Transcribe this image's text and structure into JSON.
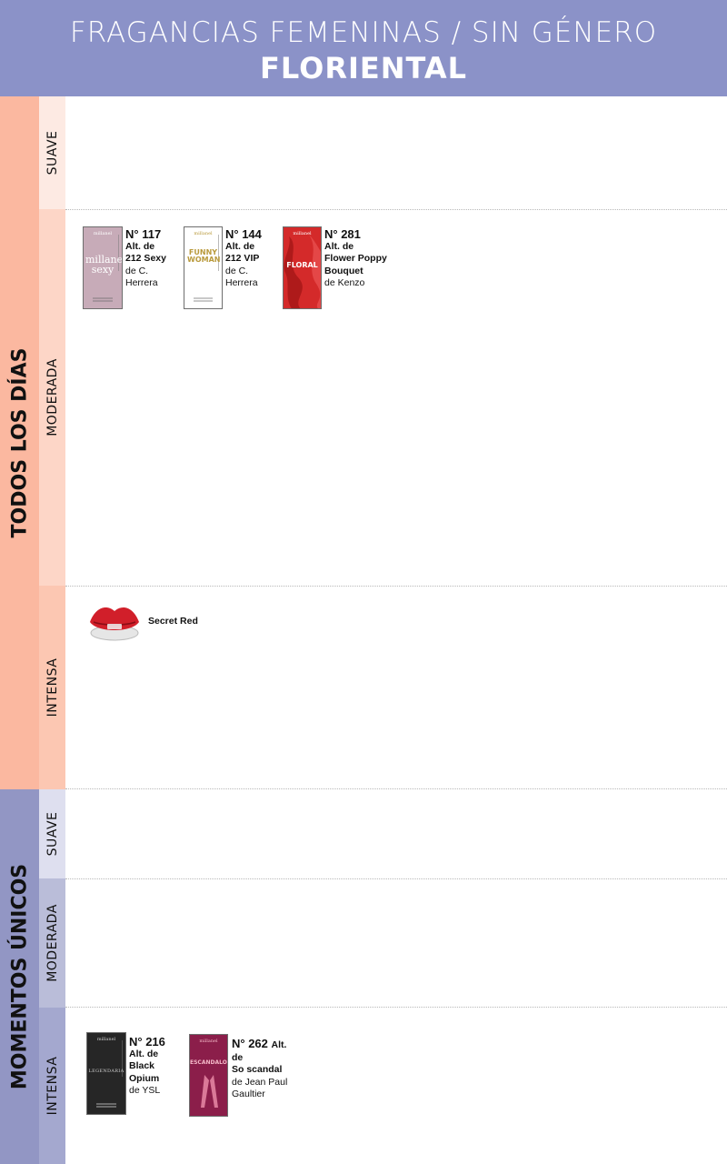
{
  "header": {
    "subtitle": "FRAGANCIAS FEMENINAS / SIN GÉNERO",
    "title": "FLORIENTAL"
  },
  "colors": {
    "header_bg": "#8b92c8",
    "group_todos": "#fbb8a0",
    "group_momentos": "#9296c4",
    "todos_suave": "#fdeae3",
    "todos_moderada": "#fdd6c7",
    "todos_intensa": "#fcc7b2",
    "momentos_suave": "#dedfef",
    "momentos_moderada": "#babdd9",
    "momentos_intensa": "#a4a8cf"
  },
  "groups": {
    "todos": {
      "label": "TODOS LOS DÍAS"
    },
    "momentos": {
      "label": "MOMENTOS ÚNICOS"
    }
  },
  "rows": {
    "todos_suave": {
      "label": "SUAVE"
    },
    "todos_moderada": {
      "label": "MODERADA"
    },
    "todos_intensa": {
      "label": "INTENSA"
    },
    "momentos_suave": {
      "label": "SUAVE"
    },
    "momentos_moderada": {
      "label": "MODERADA"
    },
    "momentos_intensa": {
      "label": "INTENSA"
    }
  },
  "products": [
    {
      "number": "N° 117",
      "alt_lines": [
        "Alt. de",
        "212 Sexy"
      ],
      "orig_lines": [
        "de C.",
        "Herrera"
      ],
      "bottle": {
        "brand": "millanel",
        "name": "millanel sexy",
        "bg": "#c7abb8",
        "color": "#ffffff"
      }
    },
    {
      "number": "N° 144",
      "alt_lines": [
        "Alt. de",
        "212 VIP"
      ],
      "orig_lines": [
        "de C.",
        "Herrera"
      ],
      "bottle": {
        "brand": "millanel",
        "name": "FUNNY WOMAN",
        "bg": "#ffffff",
        "color": "#b99a3c"
      }
    },
    {
      "number": "N° 281",
      "alt_lines": [
        "Alt. de",
        "Flower Poppy",
        "Bouquet"
      ],
      "orig_lines": [
        "de Kenzo"
      ],
      "bottle": {
        "brand": "millanel",
        "name": "FLORAL",
        "bg": "#d42a2a",
        "color": "#ffffff"
      }
    },
    {
      "name": "Secret Red",
      "icon": "red-lips-bottle-icon"
    },
    {
      "number": "N° 216",
      "alt_lines": [
        "Alt. de",
        "Black",
        "Opium"
      ],
      "orig_lines": [
        "de YSL"
      ],
      "bottle": {
        "brand": "millanel",
        "name": "LEGENDARIA",
        "bg": "#262626",
        "color": "#cfcfcf"
      }
    },
    {
      "number": "N° 262",
      "number_suffix": "Alt.",
      "alt_lines": [
        "de",
        "So scandal"
      ],
      "orig_lines": [
        "de Jean Paul",
        "Gaultier"
      ],
      "bottle": {
        "brand": "millanel",
        "name": "ESCANDALOSA!",
        "bg": "#8b1e4a",
        "color": "#f5b9c8"
      }
    }
  ]
}
